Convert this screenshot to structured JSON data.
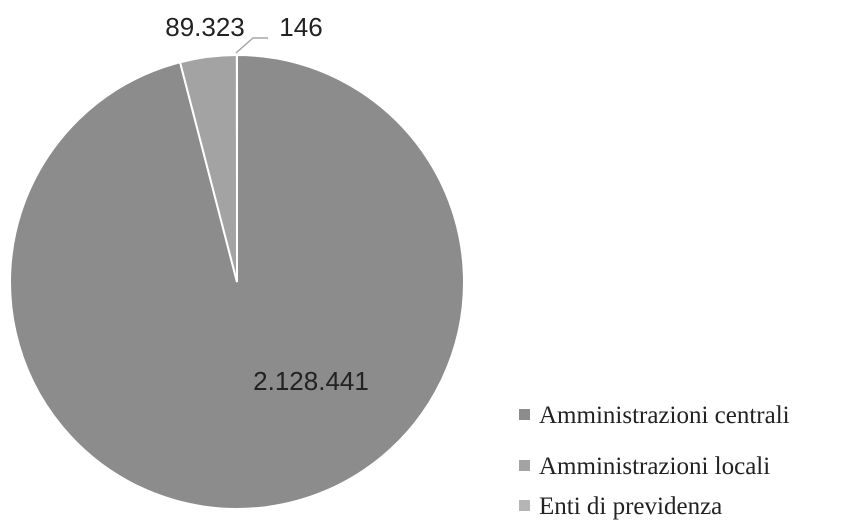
{
  "chart_data": {
    "type": "pie",
    "title": "",
    "series": [
      {
        "values": [
          2128441,
          89323,
          146
        ]
      }
    ],
    "categories": [
      "Amministrazioni centrali",
      "Amministrazioni locali",
      "Enti di previdenza"
    ],
    "data_labels": [
      "2.128.441",
      "89.323",
      "146"
    ],
    "colors": [
      "#8c8c8c",
      "#a3a3a3",
      "#b5b5b5"
    ],
    "slice_border_color": "#ffffff",
    "start_angle": "12 o'clock",
    "direction": "counterclockwise",
    "legend_position": "bottom-right"
  }
}
